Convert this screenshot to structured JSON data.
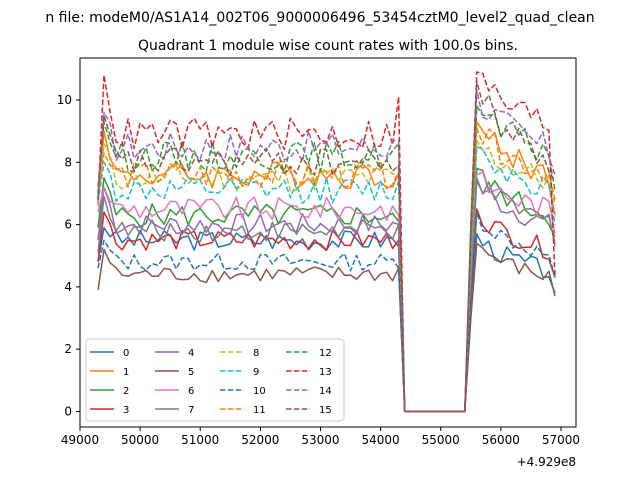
{
  "figure_title": "n file: modeM0/AS1A14_002T06_9000006496_53454cztM0_level2_quad_clean",
  "chart_data": {
    "type": "line",
    "title": "Quadrant 1 module wise count rates with 100.0s bins.",
    "xlabel": "",
    "ylabel": "",
    "x_offset_label": "+4.929e8",
    "xlim": [
      49000,
      57250
    ],
    "ylim": [
      -0.5,
      11.35
    ],
    "x_ticks": [
      49000,
      50000,
      51000,
      52000,
      53000,
      54000,
      55000,
      56000,
      57000
    ],
    "x_tick_labels": [
      "49000",
      "50000",
      "51000",
      "52000",
      "53000",
      "54000",
      "55000",
      "56000",
      "57000"
    ],
    "y_ticks": [
      0,
      2,
      4,
      6,
      8,
      10
    ],
    "y_tick_labels": [
      "0",
      "2",
      "4",
      "6",
      "8",
      "10"
    ],
    "grid": false,
    "legend": {
      "placement": "lower-left",
      "columns": 4
    },
    "x_start": 49300,
    "x_step": 100,
    "gap": {
      "zero_start": 54400,
      "zero_end": 55400
    },
    "series": [
      {
        "name": "0",
        "color": "#1f77b4",
        "dashed": false,
        "start": 4.8,
        "peak": 5.9,
        "seg1_level": 5.5,
        "drop_before_gap": 5.3,
        "seg2_start": 5.7,
        "seg2_end": 4.5,
        "end": 3.8
      },
      {
        "name": "1",
        "color": "#ff7f0e",
        "dashed": false,
        "start": 6.6,
        "peak": 9.0,
        "seg1_level": 7.6,
        "drop_before_gap": 7.6,
        "seg2_start": 9.3,
        "seg2_end": 7.6,
        "end": 6.3
      },
      {
        "name": "2",
        "color": "#2ca02c",
        "dashed": false,
        "start": 5.9,
        "peak": 7.5,
        "seg1_level": 6.3,
        "drop_before_gap": 6.1,
        "seg2_start": 7.8,
        "seg2_end": 6.3,
        "end": 5.6
      },
      {
        "name": "3",
        "color": "#d62728",
        "dashed": false,
        "start": 4.8,
        "peak": 6.4,
        "seg1_level": 5.5,
        "drop_before_gap": 5.5,
        "seg2_start": 6.5,
        "seg2_end": 5.2,
        "end": 4.3
      },
      {
        "name": "4",
        "color": "#9467bd",
        "dashed": false,
        "start": 5.5,
        "peak": 7.2,
        "seg1_level": 6.0,
        "drop_before_gap": 6.0,
        "seg2_start": 7.4,
        "seg2_end": 6.0,
        "end": 5.3
      },
      {
        "name": "5",
        "color": "#8c564b",
        "dashed": false,
        "start": 3.9,
        "peak": 5.2,
        "seg1_level": 4.4,
        "drop_before_gap": 4.6,
        "seg2_start": 5.4,
        "seg2_end": 4.3,
        "end": 3.7
      },
      {
        "name": "6",
        "color": "#e377c2",
        "dashed": false,
        "start": 6.4,
        "peak": 7.2,
        "seg1_level": 6.5,
        "drop_before_gap": 6.3,
        "seg2_start": 7.6,
        "seg2_end": 6.5,
        "end": 5.7
      },
      {
        "name": "7",
        "color": "#7f7f7f",
        "dashed": false,
        "start": 5.1,
        "peak": 6.9,
        "seg1_level": 5.8,
        "drop_before_gap": 6.0,
        "seg2_start": 7.5,
        "seg2_end": 6.1,
        "end": 5.4
      },
      {
        "name": "8",
        "color": "#bcbd22",
        "dashed": true,
        "start": 6.8,
        "peak": 8.6,
        "seg1_level": 7.5,
        "drop_before_gap": 7.6,
        "seg2_start": 8.7,
        "seg2_end": 7.4,
        "end": 6.6
      },
      {
        "name": "9",
        "color": "#17becf",
        "dashed": true,
        "start": 6.7,
        "peak": 8.0,
        "seg1_level": 7.1,
        "drop_before_gap": 7.4,
        "seg2_start": 8.5,
        "seg2_end": 7.2,
        "end": 6.0
      },
      {
        "name": "10",
        "color": "#1f77b4",
        "dashed": true,
        "start": 4.6,
        "peak": 5.5,
        "seg1_level": 4.8,
        "drop_before_gap": 4.6,
        "seg2_start": 6.4,
        "seg2_end": 5.0,
        "end": 4.3
      },
      {
        "name": "11",
        "color": "#ff7f0e",
        "dashed": true,
        "start": 6.9,
        "peak": 8.3,
        "seg1_level": 7.6,
        "drop_before_gap": 7.7,
        "seg2_start": 9.1,
        "seg2_end": 7.7,
        "end": 6.8
      },
      {
        "name": "12",
        "color": "#2ca02c",
        "dashed": true,
        "start": 7.2,
        "peak": 9.3,
        "seg1_level": 8.2,
        "drop_before_gap": 8.6,
        "seg2_start": 9.8,
        "seg2_end": 8.3,
        "end": 7.1
      },
      {
        "name": "13",
        "color": "#d62728",
        "dashed": true,
        "start": 6.8,
        "peak": 10.8,
        "seg1_level": 8.9,
        "drop_before_gap": 10.1,
        "seg2_start": 10.9,
        "seg2_end": 9.2,
        "end": 4.3
      },
      {
        "name": "14",
        "color": "#9467bd",
        "dashed": true,
        "start": 6.9,
        "peak": 9.6,
        "seg1_level": 8.5,
        "drop_before_gap": 8.7,
        "seg2_start": 10.3,
        "seg2_end": 8.4,
        "end": 7.6
      },
      {
        "name": "15",
        "color": "#8c564b",
        "dashed": true,
        "start": 7.0,
        "peak": 9.5,
        "seg1_level": 8.0,
        "drop_before_gap": 7.9,
        "seg2_start": 10.6,
        "seg2_end": 8.0,
        "end": 7.4
      }
    ]
  }
}
